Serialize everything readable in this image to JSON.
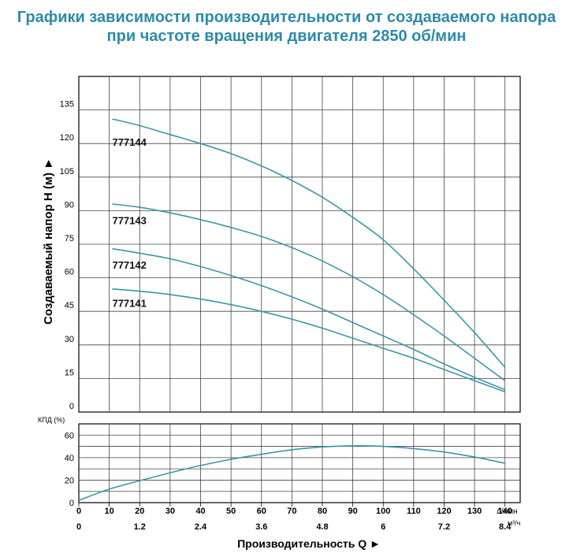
{
  "title_line1": "Графики зависимости производительности от создаваемого напора",
  "title_line2": "при частоте вращения двигателя 2850 об/мин",
  "chart_data": [
    {
      "type": "line",
      "ylabel": "Создаваемый напор H (м) ►",
      "xlabel": "Производительность Q ►",
      "x_unit": "л/мин",
      "x_unit2": "м³/ч",
      "xlim": [
        0,
        145
      ],
      "ylim": [
        0,
        150
      ],
      "grid": true,
      "x_ticks": [
        "0",
        "10",
        "20",
        "30",
        "40",
        "50",
        "60",
        "70",
        "80",
        "90",
        "100",
        "110",
        "120",
        "130",
        "140"
      ],
      "x_ticks_m3h": [
        {
          "x": 0,
          "label": "0"
        },
        {
          "x": 20,
          "label": "1.2"
        },
        {
          "x": 40,
          "label": "2.4"
        },
        {
          "x": 60,
          "label": "3.6"
        },
        {
          "x": 80,
          "label": "4.8"
        },
        {
          "x": 100,
          "label": "6"
        },
        {
          "x": 120,
          "label": "7.2"
        },
        {
          "x": 140,
          "label": "8.4"
        }
      ],
      "y_ticks": [
        "0",
        "15",
        "30",
        "45",
        "60",
        "75",
        "90",
        "105",
        "120",
        "135"
      ],
      "series": [
        {
          "name": "777144",
          "label_at": [
            11,
            119
          ],
          "color": "#3d95a9",
          "points": [
            [
              11,
              131
            ],
            [
              20,
              128
            ],
            [
              30,
              124
            ],
            [
              40,
              120
            ],
            [
              50,
              115.5
            ],
            [
              60,
              110
            ],
            [
              70,
              103.5
            ],
            [
              80,
              96
            ],
            [
              90,
              87
            ],
            [
              100,
              77
            ],
            [
              110,
              64
            ],
            [
              120,
              50
            ],
            [
              130,
              35.5
            ],
            [
              140,
              20
            ]
          ]
        },
        {
          "name": "777143",
          "label_at": [
            11,
            84
          ],
          "color": "#3d95a9",
          "points": [
            [
              11,
              93
            ],
            [
              20,
              91.5
            ],
            [
              30,
              89
            ],
            [
              40,
              86
            ],
            [
              50,
              82.5
            ],
            [
              60,
              78.5
            ],
            [
              70,
              73.5
            ],
            [
              80,
              67.5
            ],
            [
              90,
              60.5
            ],
            [
              100,
              52.5
            ],
            [
              110,
              43.5
            ],
            [
              120,
              34
            ],
            [
              130,
              24
            ],
            [
              140,
              14
            ]
          ]
        },
        {
          "name": "777142",
          "label_at": [
            11,
            64
          ],
          "color": "#3d95a9",
          "points": [
            [
              11,
              73
            ],
            [
              20,
              71
            ],
            [
              30,
              68.5
            ],
            [
              40,
              65
            ],
            [
              50,
              61
            ],
            [
              60,
              56.5
            ],
            [
              70,
              51.5
            ],
            [
              80,
              46
            ],
            [
              90,
              40
            ],
            [
              100,
              34
            ],
            [
              110,
              28
            ],
            [
              120,
              21.5
            ],
            [
              130,
              15.5
            ],
            [
              140,
              10
            ]
          ]
        },
        {
          "name": "777141",
          "label_at": [
            11,
            47
          ],
          "color": "#3d95a9",
          "points": [
            [
              11,
              55
            ],
            [
              20,
              54
            ],
            [
              30,
              52.5
            ],
            [
              40,
              50.5
            ],
            [
              50,
              48
            ],
            [
              60,
              45
            ],
            [
              70,
              41.5
            ],
            [
              80,
              37.5
            ],
            [
              90,
              33
            ],
            [
              100,
              28.5
            ],
            [
              110,
              24
            ],
            [
              120,
              19
            ],
            [
              130,
              14
            ],
            [
              140,
              9
            ]
          ]
        }
      ]
    },
    {
      "type": "line",
      "ylabel": "КПД (%)",
      "xlim": [
        0,
        145
      ],
      "ylim": [
        0,
        70
      ],
      "grid": true,
      "y_ticks": [
        "0",
        "20",
        "40",
        "60"
      ],
      "series": [
        {
          "color": "#3d95a9",
          "points": [
            [
              0,
              2
            ],
            [
              10,
              12
            ],
            [
              20,
              19.5
            ],
            [
              30,
              26.5
            ],
            [
              40,
              33
            ],
            [
              50,
              38.5
            ],
            [
              60,
              43
            ],
            [
              70,
              47
            ],
            [
              80,
              49.5
            ],
            [
              90,
              50.5
            ],
            [
              100,
              50
            ],
            [
              110,
              48
            ],
            [
              120,
              45
            ],
            [
              130,
              40.5
            ],
            [
              140,
              35
            ]
          ]
        }
      ]
    }
  ]
}
